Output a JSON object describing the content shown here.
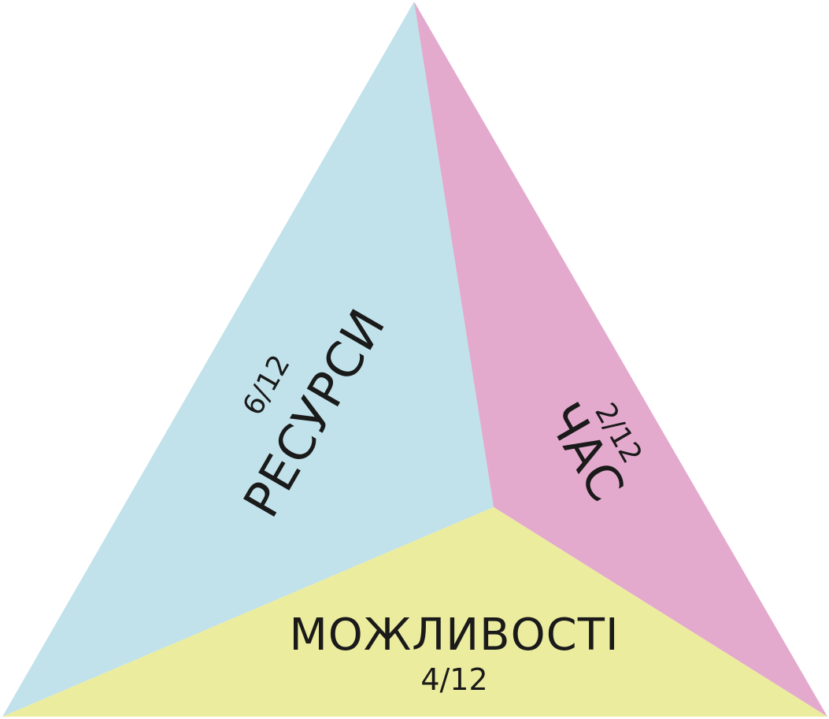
{
  "segments": [
    {
      "id": "resources",
      "label": "РЕСУРСИ",
      "fraction": "6/12",
      "color": "#c1e2ea"
    },
    {
      "id": "time",
      "label": "ЧАС",
      "fraction": "2/12",
      "color": "#e3aacd"
    },
    {
      "id": "opportunities",
      "label": "МОЖЛИВОСТІ",
      "fraction": "4/12",
      "color": "#ecec9f"
    }
  ]
}
